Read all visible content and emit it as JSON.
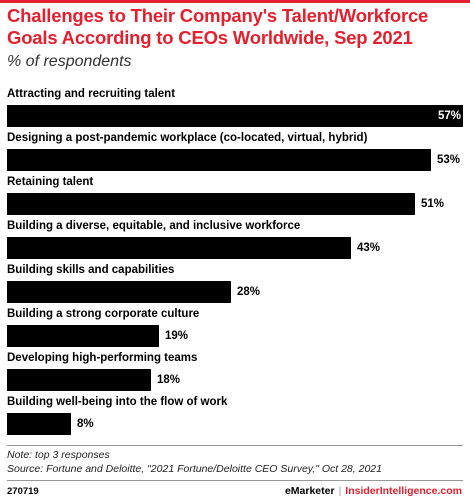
{
  "chart_data": {
    "type": "bar",
    "orientation": "horizontal",
    "title": "Challenges to Their Company's Talent/Workforce Goals According to CEOs Worldwide, Sep 2021",
    "subtitle": "% of respondents",
    "categories": [
      "Attracting and recruiting talent",
      "Designing a post-pandemic workplace (co-located, virtual, hybrid)",
      "Retaining talent",
      "Building a diverse, equitable, and inclusive workforce",
      "Building skills and capabilities",
      "Building a strong corporate culture",
      "Developing high-performing teams",
      "Building well-being into the flow of work"
    ],
    "values": [
      57,
      53,
      51,
      43,
      28,
      19,
      18,
      8
    ],
    "value_labels": [
      "57%",
      "53%",
      "51%",
      "43%",
      "28%",
      "19%",
      "18%",
      "8%"
    ],
    "xlim": [
      0,
      57
    ],
    "bar_color": "#000000",
    "grid": false,
    "legend": "none"
  },
  "notes": {
    "note": "Note: top 3 responses",
    "source": "Source: Fortune and Deloitte, \"2021 Fortune/Deloitte CEO Survey,\" Oct 28, 2021"
  },
  "footer": {
    "id": "270719",
    "brand": "eMarketer",
    "separator": "|",
    "brand2": "InsiderIntelligence.com"
  },
  "colors": {
    "accent": "#e5202e"
  }
}
